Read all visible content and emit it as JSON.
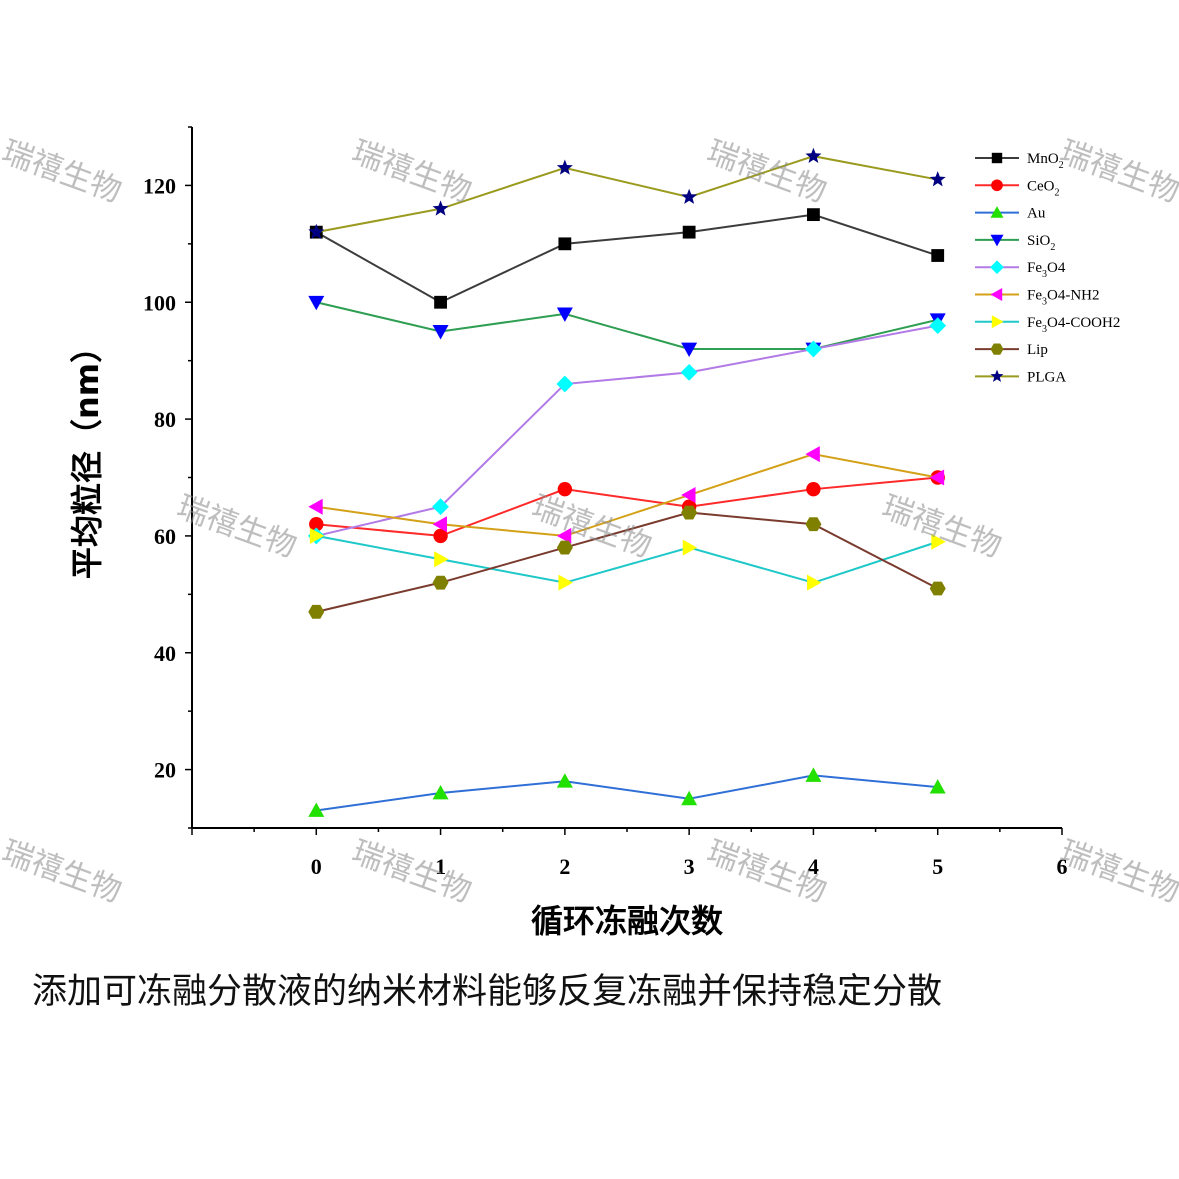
{
  "chart_data": {
    "type": "line",
    "xlabel": "循环冻融次数",
    "ylabel": "平均粒径（nm）",
    "x": [
      0,
      1,
      2,
      3,
      4,
      5
    ],
    "xlim": [
      -1,
      6
    ],
    "xticks": [
      0,
      1,
      2,
      3,
      4,
      5,
      6
    ],
    "ylim": [
      10,
      130
    ],
    "yticks": [
      20,
      40,
      60,
      80,
      100,
      120
    ],
    "grid": false,
    "legend_position": "top-right",
    "series": [
      {
        "name": "MnO2",
        "name_main": "MnO",
        "name_sub": "2",
        "name_rest": "",
        "color": "#3c3c3c",
        "marker": "square",
        "marker_color": "#000000",
        "values": [
          112,
          100,
          110,
          112,
          115,
          108
        ]
      },
      {
        "name": "CeO2",
        "name_main": "CeO",
        "name_sub": "2",
        "name_rest": "",
        "color": "#ff2a2a",
        "marker": "circle",
        "marker_color": "#ff0000",
        "values": [
          62,
          60,
          68,
          65,
          68,
          70
        ]
      },
      {
        "name": "Au",
        "name_main": "Au",
        "name_sub": "",
        "name_rest": "",
        "color": "#2f6fd6",
        "marker": "triangle-up",
        "marker_color": "#22e000",
        "values": [
          13,
          16,
          18,
          15,
          19,
          17
        ]
      },
      {
        "name": "SiO2",
        "name_main": "SiO",
        "name_sub": "2",
        "name_rest": "",
        "color": "#2e9e52",
        "marker": "triangle-down",
        "marker_color": "#0000ff",
        "values": [
          100,
          95,
          98,
          92,
          92,
          97
        ]
      },
      {
        "name": "Fe3O4",
        "name_main": "Fe",
        "name_sub": "3",
        "name_rest": "O4",
        "color": "#b27ae6",
        "marker": "diamond",
        "marker_color": "#00ffff",
        "values": [
          60,
          65,
          86,
          88,
          92,
          96
        ]
      },
      {
        "name": "Fe3O4-NH2",
        "name_main": "Fe",
        "name_sub": "3",
        "name_rest": "O4-NH2",
        "color": "#d4a017",
        "marker": "triangle-left",
        "marker_color": "#ff00ff",
        "values": [
          65,
          62,
          60,
          67,
          74,
          70
        ]
      },
      {
        "name": "Fe3O4-COOH2",
        "name_main": "Fe",
        "name_sub": "3",
        "name_rest": "O4-COOH2",
        "color": "#1ec8c8",
        "marker": "triangle-right",
        "marker_color": "#ffff00",
        "values": [
          60,
          56,
          52,
          58,
          52,
          59
        ]
      },
      {
        "name": "Lip",
        "name_main": "Lip",
        "name_sub": "",
        "name_rest": "",
        "color": "#7a3b2e",
        "marker": "hexagon",
        "marker_color": "#808000",
        "values": [
          47,
          52,
          58,
          64,
          62,
          51
        ]
      },
      {
        "name": "PLGA",
        "name_main": "PLGA",
        "name_sub": "",
        "name_rest": "",
        "color": "#9a9a1e",
        "marker": "star",
        "marker_color": "#000080",
        "values": [
          112,
          116,
          123,
          118,
          125,
          121
        ]
      }
    ]
  },
  "caption": "添加可冻融分散液的纳米材料能够反复冻融并保持稳定分散",
  "watermark": "瑞禧生物"
}
